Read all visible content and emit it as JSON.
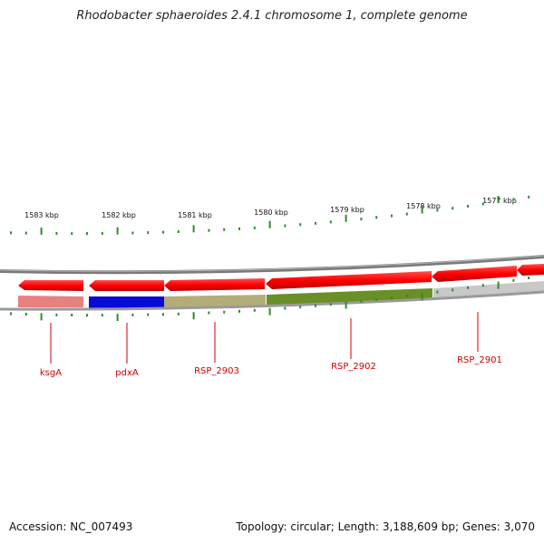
{
  "title": "Rhodobacter sphaeroides 2.4.1 chromosome 1, complete genome",
  "footer": {
    "accession_label": "Accession:",
    "accession": "NC_007493",
    "topology_text": "Topology: circular; Length: 3,188,609 bp; Genes: 3,070"
  },
  "scale": {
    "unit": "kbp",
    "labels": [
      "1583 kbp",
      "1582 kbp",
      "1581 kbp",
      "1580 kbp",
      "1579 kbp",
      "1578 kbp",
      "1577 kbp"
    ]
  },
  "genes": [
    {
      "name": "ksgA",
      "color": "#e98080"
    },
    {
      "name": "pdxA",
      "color": "#0a0ad8"
    },
    {
      "name": "RSP_2903",
      "color": "#b3ae78"
    },
    {
      "name": "RSP_2902",
      "color": "#6a8f26"
    },
    {
      "name": "RSP_2901",
      "color": "#c8c8c8"
    }
  ],
  "colors": {
    "cds_arrow": "#ff0000",
    "label": "#cc0000",
    "tick": "#2e8b2e",
    "backbone": "#888888"
  }
}
